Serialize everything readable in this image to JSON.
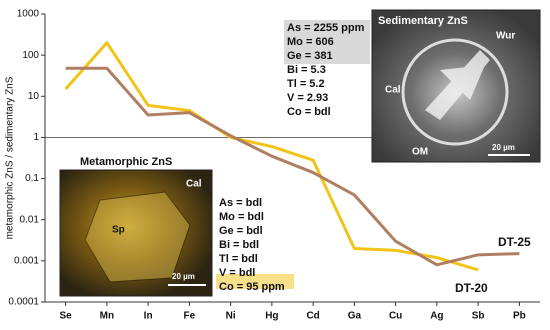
{
  "chart_data": {
    "type": "line",
    "y_label": "metamorphic ZnS / sedimentary ZnS",
    "categories": [
      "Se",
      "Mn",
      "In",
      "Fe",
      "Ni",
      "Hg",
      "Cd",
      "Ga",
      "Cu",
      "Ag",
      "Sb",
      "Pb"
    ],
    "series": [
      {
        "name": "DT-20",
        "color": "#f2c418",
        "values": [
          15,
          200,
          6,
          4.5,
          1.0,
          0.6,
          0.28,
          0.002,
          0.0018,
          0.0012,
          0.0006,
          null
        ]
      },
      {
        "name": "DT-25",
        "color": "#b07f62",
        "values": [
          48,
          48,
          3.5,
          4,
          1.1,
          0.35,
          0.14,
          0.04,
          0.003,
          0.0008,
          0.0014,
          0.0015
        ]
      }
    ],
    "log_scale": true,
    "ylim": [
      0.0001,
      1000
    ],
    "yticks": [
      1000,
      100,
      10,
      1,
      0.1,
      0.01,
      0.001,
      0.0001
    ],
    "reference_line": 1,
    "insets": [
      {
        "title": "Sedimentary ZnS",
        "labels": [
          "Wur",
          "Cal",
          "OM"
        ],
        "scale": "20 µm",
        "composition": [
          "As = 2255 ppm",
          "Mo = 606",
          "Ge = 381",
          "Bi = 5.3",
          "Tl = 5.2",
          "V = 2.93",
          "Co = bdl"
        ]
      },
      {
        "title": "Metamorphic ZnS",
        "labels": [
          "Cal",
          "Sp"
        ],
        "scale": "20 µm",
        "composition": [
          "As = bdl",
          "Mo = bdl",
          "Ge = bdl",
          "Bi = bdl",
          "Tl = bdl",
          "V = bdl",
          "Co = 95 ppm"
        ]
      }
    ]
  }
}
